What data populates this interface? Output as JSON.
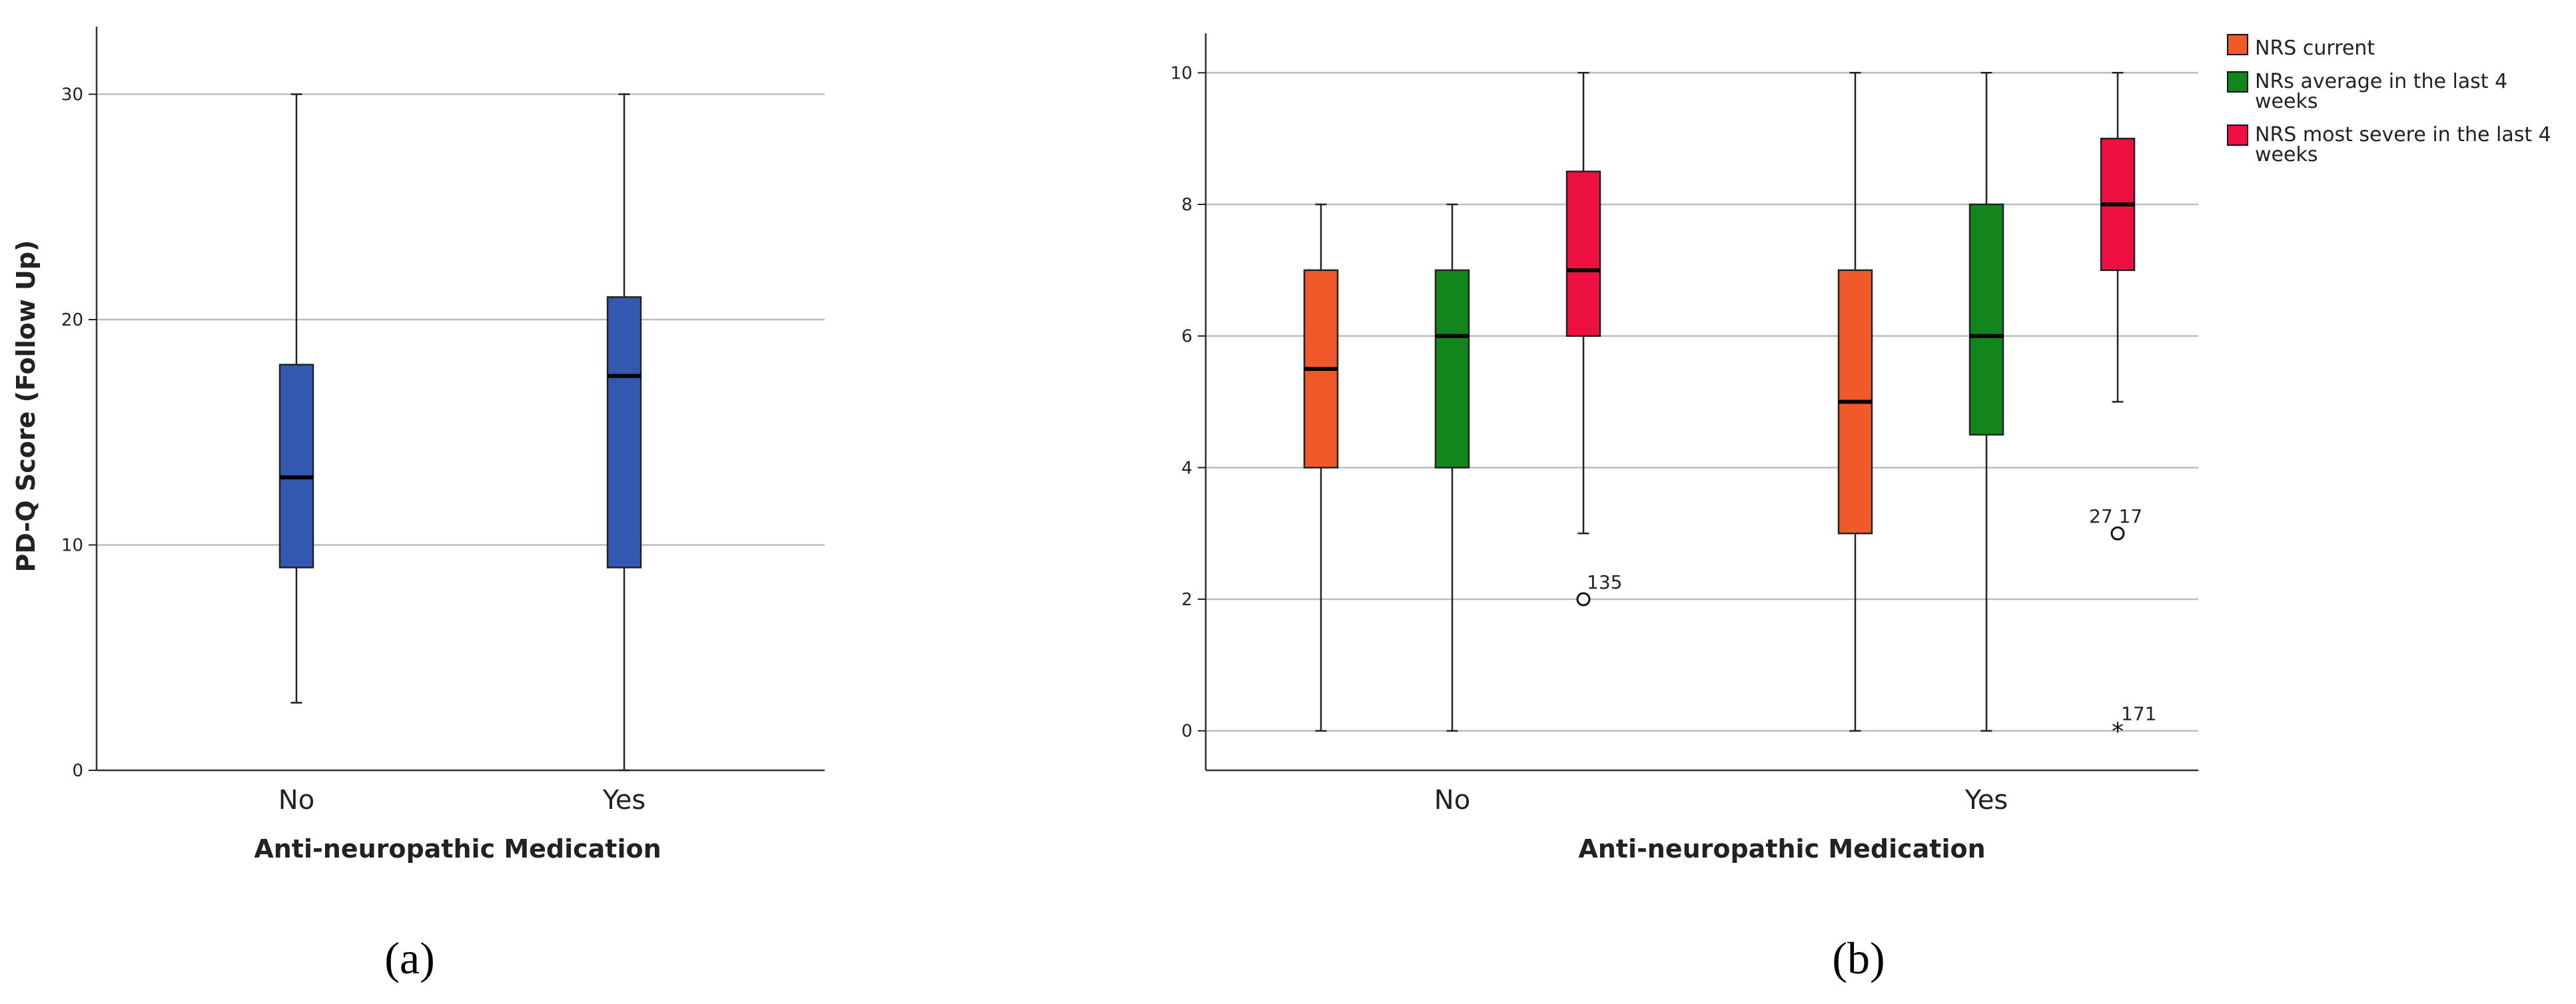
{
  "panels": [
    {
      "text": "(a)",
      "letter": "a"
    },
    {
      "text": "(b)",
      "letter": "b"
    }
  ],
  "chart_data": [
    {
      "type": "box",
      "ylabel": "PD-Q Score (Follow Up)",
      "xlabel": "Anti-neuropathic Medication",
      "ylim": [
        0,
        33
      ],
      "yticks": [
        0,
        10,
        20,
        30
      ],
      "grid": true,
      "categories": [
        "No",
        "Yes"
      ],
      "series": [
        {
          "color": "#3358b0",
          "boxes": [
            {
              "category": "No",
              "min": 3,
              "q1": 9,
              "median": 13,
              "q3": 18,
              "max": 30
            },
            {
              "category": "Yes",
              "min": 0,
              "q1": 9,
              "median": 17.5,
              "q3": 21,
              "max": 30
            }
          ]
        }
      ]
    },
    {
      "type": "box",
      "ylabel": "",
      "xlabel": "Anti-neuropathic Medication",
      "ylim": [
        -0.6,
        10.6
      ],
      "yticks": [
        0,
        2,
        4,
        6,
        8,
        10
      ],
      "grid": true,
      "legend_position": "top-right",
      "categories": [
        "No",
        "Yes"
      ],
      "series": [
        {
          "name": "NRS current",
          "color": "#f05a2a",
          "boxes": [
            {
              "category": "No",
              "min": 0,
              "q1": 4,
              "median": 5.5,
              "q3": 7,
              "max": 8
            },
            {
              "category": "Yes",
              "min": 0,
              "q1": 3,
              "median": 5,
              "q3": 7,
              "max": 10
            }
          ]
        },
        {
          "name": "NRs average in the last 4 weeks",
          "color": "#12861c",
          "boxes": [
            {
              "category": "No",
              "min": 0,
              "q1": 4,
              "median": 6,
              "q3": 7,
              "max": 8
            },
            {
              "category": "Yes",
              "min": 0,
              "q1": 4.5,
              "median": 6,
              "q3": 8,
              "max": 10
            }
          ]
        },
        {
          "name": "NRS most severe in the last 4 weeks",
          "color": "#ee1040",
          "boxes": [
            {
              "category": "No",
              "min": 3,
              "q1": 6,
              "median": 7,
              "q3": 8.5,
              "max": 10
            },
            {
              "category": "Yes",
              "min": 5,
              "q1": 7,
              "median": 8,
              "q3": 9,
              "max": 10
            }
          ]
        }
      ],
      "outliers": [
        {
          "category": "No",
          "series": 2,
          "value": 2,
          "marker": "circle",
          "label": "135"
        },
        {
          "category": "Yes",
          "series": 2,
          "value": 3,
          "marker": "circle",
          "label": "27 17"
        },
        {
          "category": "Yes",
          "series": 2,
          "value": 0,
          "marker": "star",
          "label": "171"
        }
      ]
    }
  ]
}
